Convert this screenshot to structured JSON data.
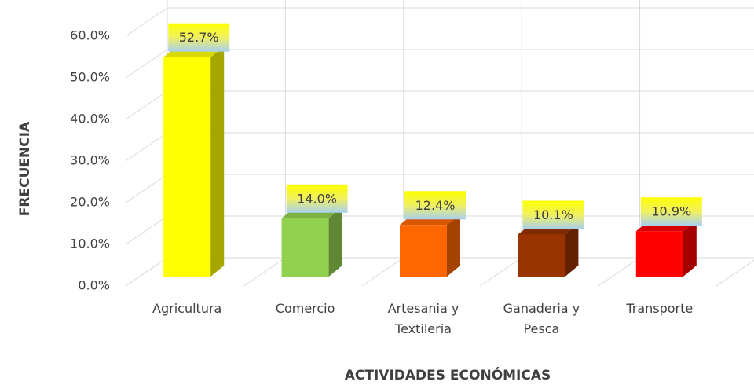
{
  "chart_data": {
    "type": "bar3d",
    "categories": [
      "Agricultura",
      "Comercio",
      "Artesania y Textileria",
      "Ganaderia y Pesca",
      "Transporte"
    ],
    "values": [
      52.7,
      14.0,
      12.4,
      10.1,
      10.9
    ],
    "value_labels": [
      "52.7%",
      "14.0%",
      "12.4%",
      "10.1%",
      "10.9%"
    ],
    "colors": [
      "#ffff00",
      "#92d050",
      "#ff6600",
      "#993300",
      "#ff0000"
    ],
    "ylim": [
      0,
      60
    ],
    "yticks": [
      {
        "value": 0,
        "label": "0.0%"
      },
      {
        "value": 10,
        "label": "10.0%"
      },
      {
        "value": 20,
        "label": "20.0%"
      },
      {
        "value": 30,
        "label": "30.0%"
      },
      {
        "value": 40,
        "label": "40.0%"
      },
      {
        "value": 50,
        "label": "50.0%"
      },
      {
        "value": 60,
        "label": "60.0%"
      }
    ],
    "ylabel": "FRECUENCIA",
    "xlabel": "ACTIVIDADES ECONÓMICAS",
    "grid": true
  }
}
